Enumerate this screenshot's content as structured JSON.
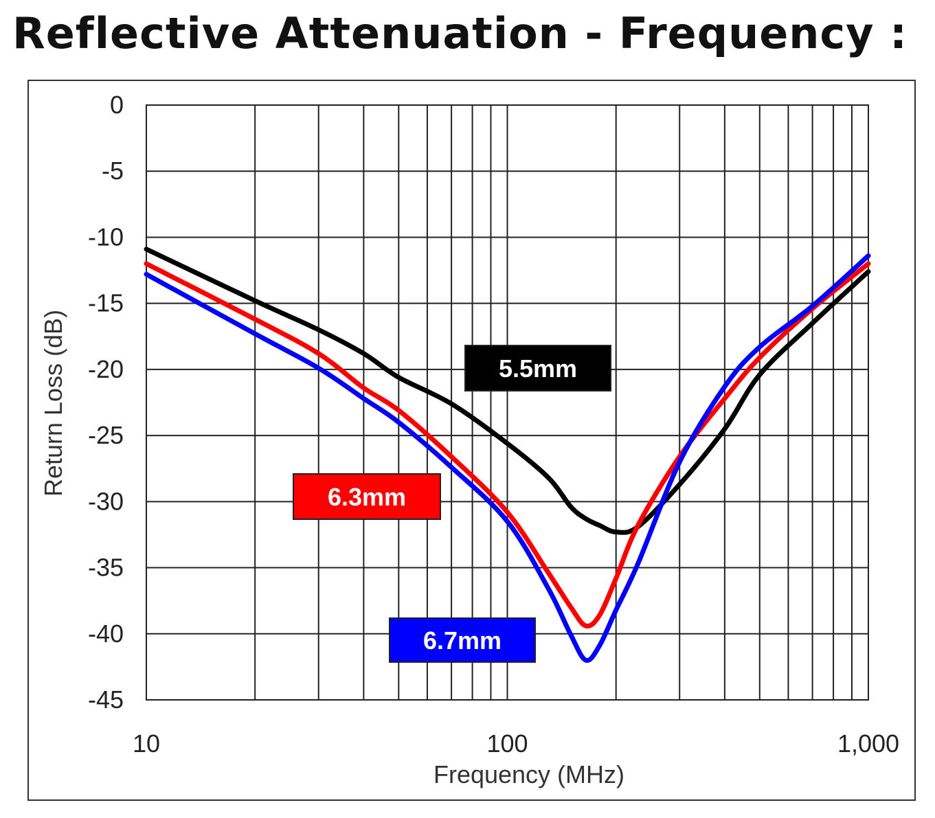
{
  "title": "Reflective Attenuation - Frequency :",
  "chart_data": {
    "type": "line",
    "title": "Reflective Attenuation - Frequency :",
    "xlabel": "Frequency (MHz)",
    "ylabel": "Return Loss (dB)",
    "xscale": "log",
    "xlim": [
      10,
      1000
    ],
    "ylim": [
      -45,
      0
    ],
    "grid": true,
    "xticks": [
      10,
      100,
      1000
    ],
    "xtick_labels": [
      "10",
      "100",
      "1,000"
    ],
    "yticks": [
      0,
      -5,
      -10,
      -15,
      -20,
      -25,
      -30,
      -35,
      -40,
      -45
    ],
    "ytick_labels": [
      "0",
      "-5",
      "-10",
      "-15",
      "-20",
      "-25",
      "-30",
      "-35",
      "-40",
      "-45"
    ],
    "x": [
      10,
      20,
      30,
      40,
      50,
      70,
      100,
      130,
      150,
      165,
      180,
      200,
      230,
      300,
      400,
      500,
      700,
      1000
    ],
    "series": [
      {
        "name": "5.5mm",
        "color": "#000000",
        "values": [
          -10.9,
          -14.8,
          -17.0,
          -18.8,
          -20.6,
          -22.6,
          -25.6,
          -28.2,
          -30.4,
          -31.3,
          -31.8,
          -32.3,
          -31.9,
          -28.7,
          -24.5,
          -20.4,
          -16.5,
          -12.6
        ]
      },
      {
        "name": "6.3mm",
        "color": "#ff0000",
        "values": [
          -12.0,
          -16.2,
          -18.8,
          -21.4,
          -23.1,
          -26.6,
          -30.8,
          -35.4,
          -38.0,
          -39.4,
          -38.6,
          -35.8,
          -31.8,
          -26.6,
          -22.2,
          -19.1,
          -15.4,
          -12.0
        ]
      },
      {
        "name": "6.7mm",
        "color": "#0000ff",
        "values": [
          -12.8,
          -17.3,
          -19.9,
          -22.2,
          -24.0,
          -27.4,
          -31.5,
          -36.6,
          -40.1,
          -42.0,
          -40.9,
          -38.2,
          -34.7,
          -27.0,
          -21.3,
          -18.3,
          -15.2,
          -11.4
        ]
      }
    ],
    "legend": "inline labels"
  }
}
